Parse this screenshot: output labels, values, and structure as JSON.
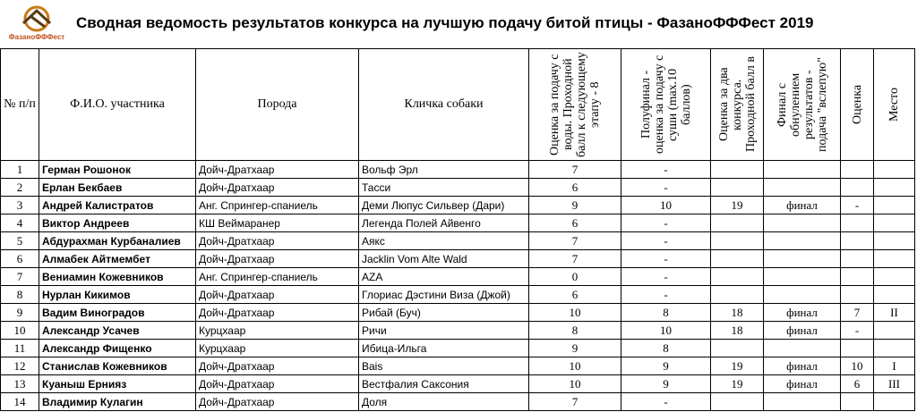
{
  "logo": "ФазаноФФФест",
  "title": "Сводная ведомость результатов конкурса на лучшую подачу битой птицы - ФазаноФФФест 2019",
  "table": {
    "header": [
      "№ п/п",
      "Ф.И.О. участника",
      "Порода",
      "Кличка собаки",
      "Оценка за подачу с воды. Проходной балл к следующему этапу - 8",
      "Полуфинал - оценка за подачу с суши (max.10 баллов)",
      "Оценка за два конкурса. Проходной балл в",
      "Финал с обнулением результатов - подача \"вслепую\"",
      "Оценка",
      "Место"
    ],
    "rows": [
      [
        1,
        "Герман Рошонок",
        "Дойч-Дратхаар",
        "Вольф Эрл",
        7,
        "-",
        null,
        null,
        null,
        null
      ],
      [
        2,
        "Ерлан Бекбаев",
        "Дойч-Дратхаар",
        "Тасси",
        6,
        "-",
        null,
        null,
        null,
        null
      ],
      [
        3,
        "Андрей Калистратов",
        "Анг. Спрингер-спаниель",
        "Деми Люпус Сильвер (Дари)",
        9,
        10,
        19,
        "финал",
        "-",
        null
      ],
      [
        4,
        "Виктор Андреев",
        "КШ Веймаранер",
        "Легенда Полей Айвенго",
        6,
        "-",
        null,
        null,
        null,
        null
      ],
      [
        5,
        "Абдурахман Курбаналиев",
        "Дойч-Дратхаар",
        "Аякс",
        7,
        "-",
        null,
        null,
        null,
        null
      ],
      [
        6,
        "Алмабек Айтмембет",
        "Дойч-Дратхаар",
        "Jacklin Vom Alte Wald",
        7,
        "-",
        null,
        null,
        null,
        null
      ],
      [
        7,
        "Вениамин Кожевников",
        "Анг. Спрингер-спаниель",
        "AZA",
        0,
        "-",
        null,
        null,
        null,
        null
      ],
      [
        8,
        "Нурлан Кикимов",
        "Дойч-Дратхаар",
        "Глориас Дэстини Виза (Джой)",
        6,
        "-",
        null,
        null,
        null,
        null
      ],
      [
        9,
        "Вадим Виноградов",
        "Дойч-Дратхаар",
        "Рибай (Буч)",
        10,
        8,
        18,
        "финал",
        7,
        "II"
      ],
      [
        10,
        "Александр Усачев",
        "Курцхаар",
        "Ричи",
        8,
        10,
        18,
        "финал",
        "-",
        null
      ],
      [
        11,
        "Александр Фищенко",
        "Курцхаар",
        "Ибица-Ильга",
        9,
        8,
        null,
        null,
        null,
        null
      ],
      [
        12,
        "Станислав Кожевников",
        "Дойч-Дратхаар",
        "Bais",
        10,
        9,
        19,
        "финал",
        10,
        "I"
      ],
      [
        13,
        "Куаныш Ернияз",
        "Дойч-Дратхаар",
        "Вестфалия Саксония",
        10,
        9,
        19,
        "финал",
        6,
        "III"
      ],
      [
        14,
        "Владимир Кулагин",
        "Дойч-Дратхаар",
        "Доля",
        7,
        "-",
        null,
        null,
        null,
        null
      ]
    ]
  }
}
